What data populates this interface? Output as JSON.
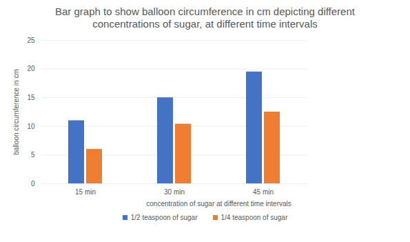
{
  "chart_data": {
    "type": "bar",
    "title": "Bar graph to show balloon circumference in cm depicting different concentrations of sugar, at different time intervals",
    "xlabel": "concentration of sugar at different time intervals",
    "ylabel": "balloon circumference in cm",
    "categories": [
      "15 min",
      "30 min",
      "45 min",
      null
    ],
    "series": [
      {
        "name": "1/2 teaspoon of sugar",
        "color": "#4472c4",
        "values": [
          11,
          15,
          19.5,
          null
        ]
      },
      {
        "name": "1/4 teaspoon of sugar",
        "color": "#ed7d31",
        "values": [
          6,
          10.4,
          12.5,
          null
        ]
      }
    ],
    "ylim": [
      0,
      25
    ],
    "yticks": [
      0,
      5,
      10,
      15,
      20,
      25
    ],
    "grid": true,
    "legend": "bottom"
  }
}
